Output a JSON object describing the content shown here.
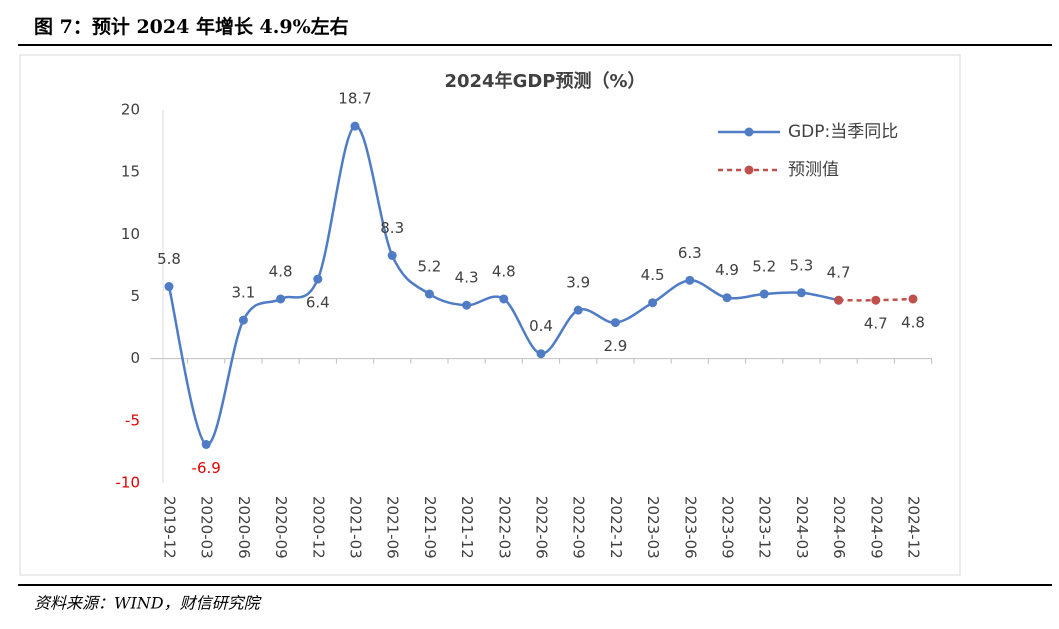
{
  "header": {
    "title": "图 7：预计 2024 年增长 4.9%左右"
  },
  "source": "资料来源：WIND，财信研究院",
  "chart_data": {
    "type": "line",
    "title": "2024年GDP预测（%）",
    "categories": [
      "2019-12",
      "2020-03",
      "2020-06",
      "2020-09",
      "2020-12",
      "2021-03",
      "2021-06",
      "2021-09",
      "2021-12",
      "2022-03",
      "2022-06",
      "2022-09",
      "2022-12",
      "2023-03",
      "2023-06",
      "2023-09",
      "2023-12",
      "2024-03",
      "2024-06",
      "2024-09",
      "2024-12"
    ],
    "series": [
      {
        "name": "GDP:当季同比",
        "color": "#4f7cc4",
        "dashed": false,
        "values": [
          5.8,
          -6.9,
          3.1,
          4.8,
          6.4,
          18.7,
          8.3,
          5.2,
          4.3,
          4.8,
          0.4,
          3.9,
          2.9,
          4.5,
          6.3,
          4.9,
          5.2,
          5.3,
          4.7,
          null,
          null
        ]
      },
      {
        "name": "预测值",
        "color": "#c0504d",
        "dashed": true,
        "values": [
          null,
          null,
          null,
          null,
          null,
          null,
          null,
          null,
          null,
          null,
          null,
          null,
          null,
          null,
          null,
          null,
          null,
          null,
          4.7,
          4.7,
          4.8
        ]
      }
    ],
    "ylim": [
      -10,
      20
    ],
    "yticks": [
      -10,
      -5,
      0,
      5,
      10,
      15,
      20
    ],
    "negative_label_color": "#e00000",
    "smooth": true
  }
}
